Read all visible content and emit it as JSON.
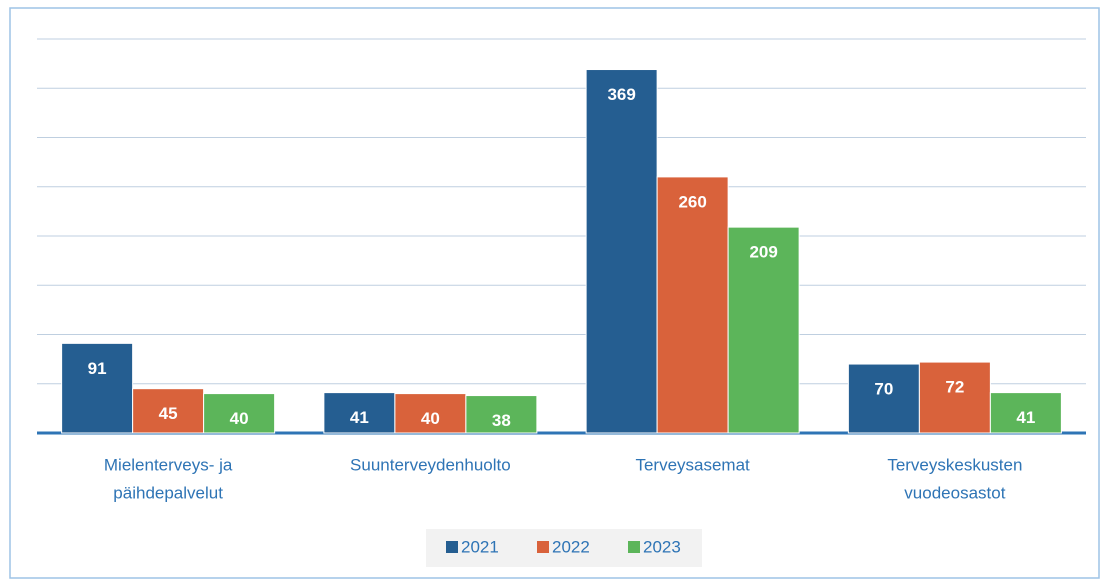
{
  "chart_data": {
    "type": "bar",
    "categories": [
      [
        "Mielenterveys- ja",
        "päihdepalvelut"
      ],
      [
        "Suunterveydenhuolto"
      ],
      [
        "Terveysasemat"
      ],
      [
        "Terveyskeskusten",
        "vuodeosastot"
      ]
    ],
    "series": [
      {
        "name": "2021",
        "color": "#255e91",
        "values": [
          91,
          41,
          369,
          70
        ]
      },
      {
        "name": "2022",
        "color": "#d9623b",
        "values": [
          45,
          40,
          260,
          72
        ]
      },
      {
        "name": "2023",
        "color": "#5cb55a",
        "values": [
          40,
          38,
          209,
          41
        ]
      }
    ],
    "ylim": [
      0,
      400
    ],
    "yticks": [
      0,
      50,
      100,
      150,
      200,
      250,
      300,
      350,
      400
    ],
    "grid": true,
    "legend": "bottom"
  }
}
